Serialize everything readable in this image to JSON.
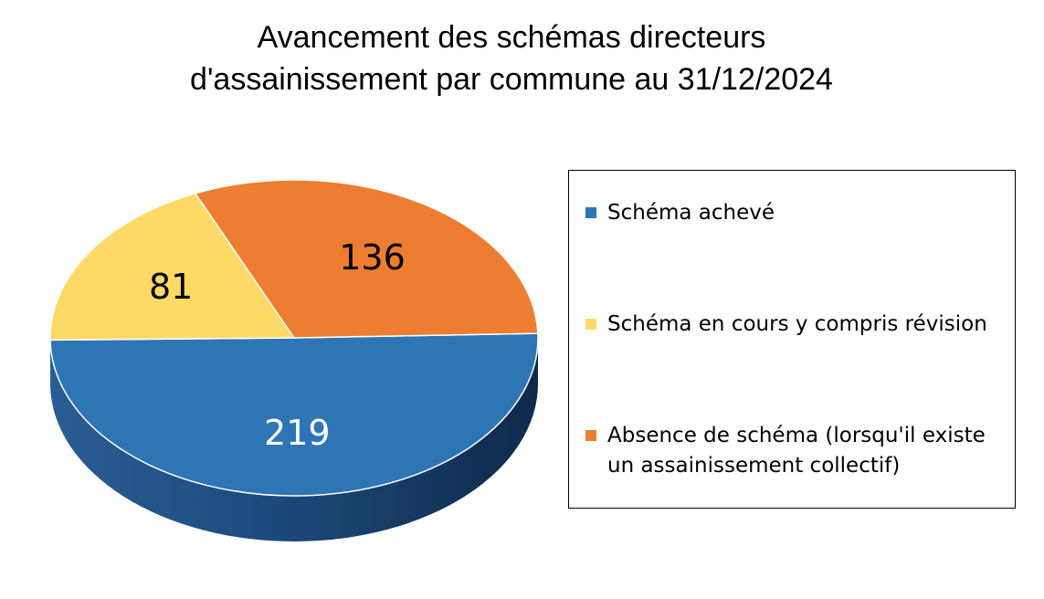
{
  "chart_data": {
    "type": "pie",
    "title_lines": [
      "Avancement des schémas directeurs",
      "d'assainissement par commune au 31/12/2024"
    ],
    "slices": [
      {
        "label": "Schéma achevé",
        "value": 219,
        "color": "#2E75B6",
        "label_color": "#ffffff"
      },
      {
        "label": "Schéma en cours y compris révision",
        "value": 81,
        "color": "#FFD966",
        "label_color": "#000000"
      },
      {
        "label": "Absence de schéma (lorsqu'il existe un assainissement collectif)",
        "value": 136,
        "color": "#ED7D31",
        "label_color": "#000000"
      }
    ],
    "legend_placement": "right",
    "style": "3d-tilted"
  }
}
